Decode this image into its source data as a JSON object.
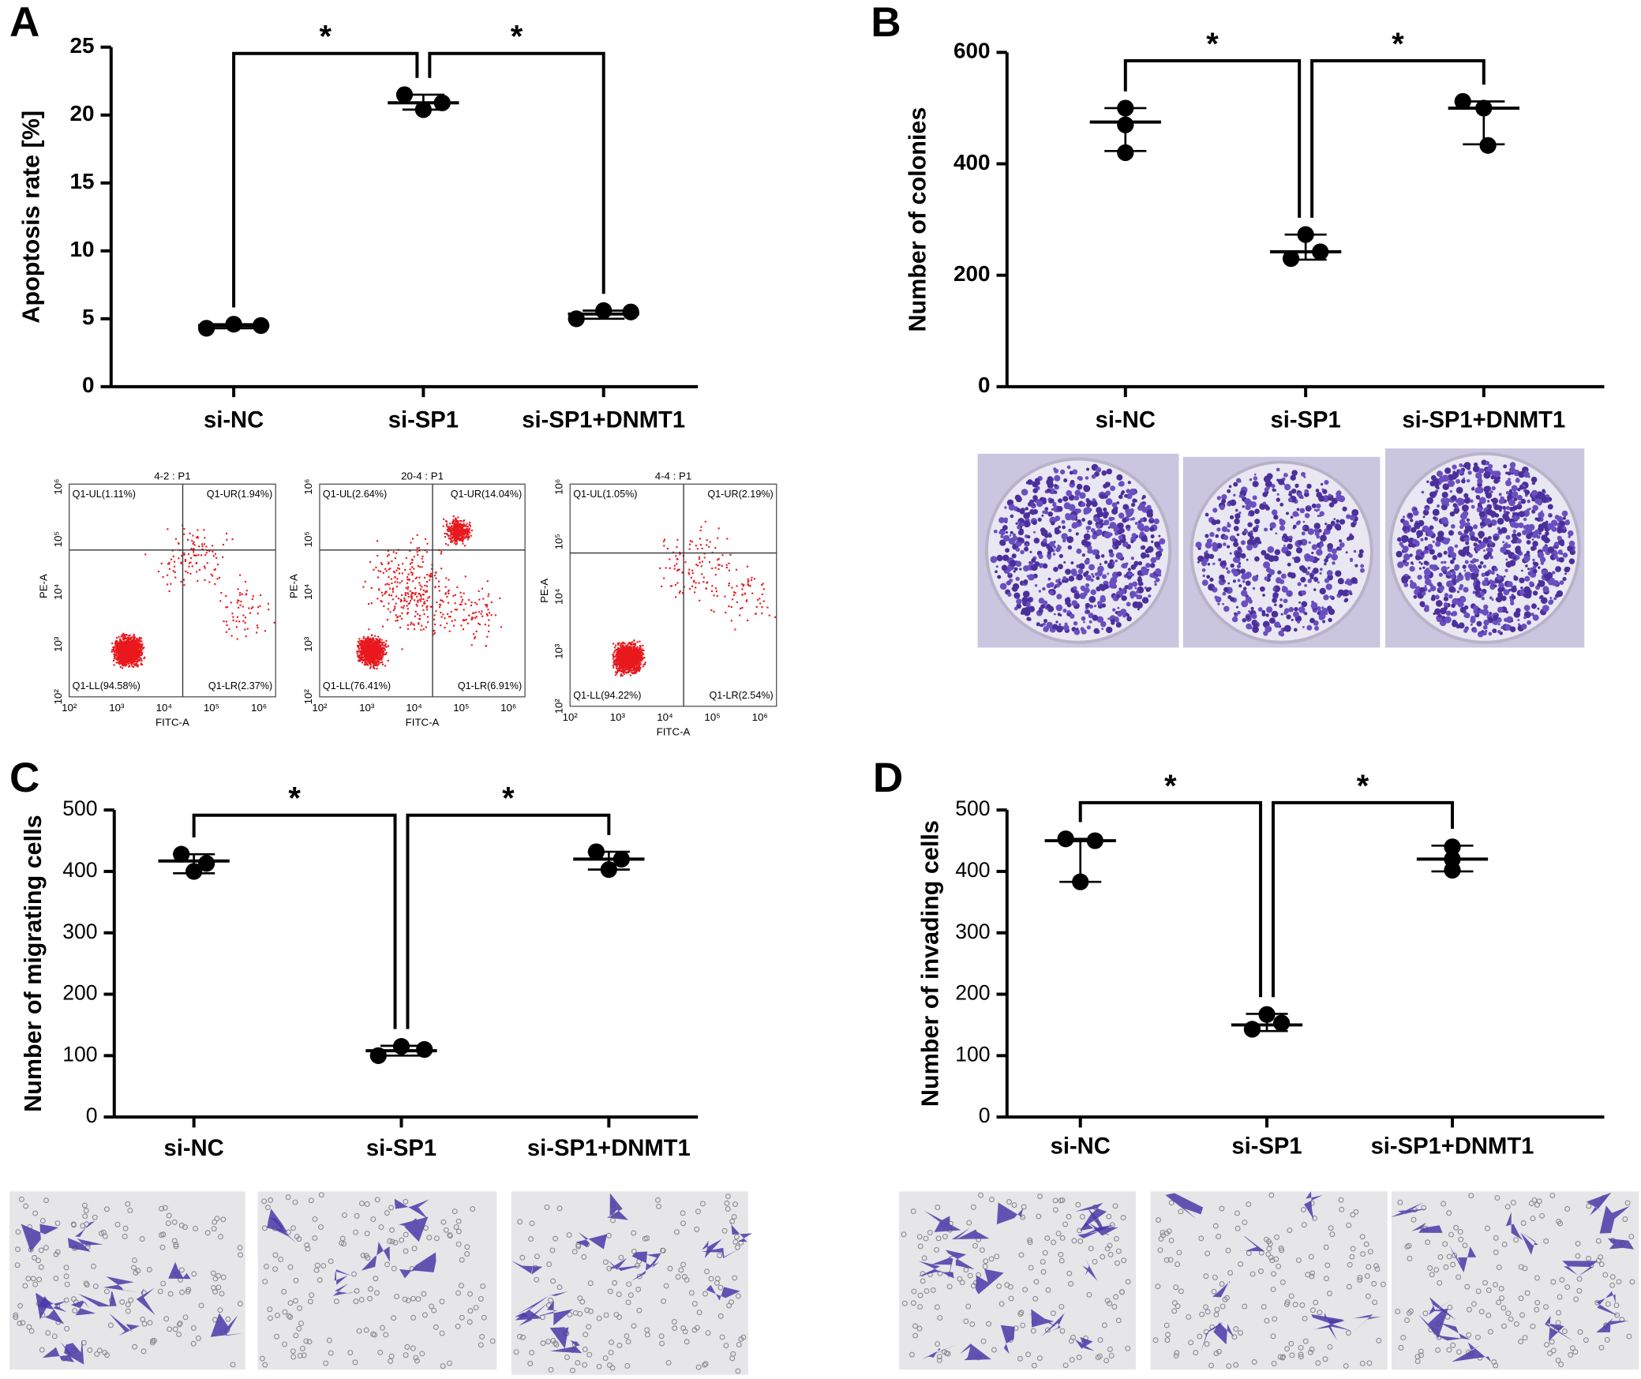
{
  "chart_data": [
    {
      "type": "dot",
      "panel": "A",
      "ylabel": "Apoptosis rate [%]",
      "categories": [
        "si-NC",
        "si-SP1",
        "si-SP1+DNMT1"
      ],
      "points": [
        [
          4.3,
          4.6,
          4.5
        ],
        [
          21.5,
          20.4,
          20.9
        ],
        [
          5.0,
          5.6,
          5.5
        ]
      ],
      "center": [
        4.5,
        20.9,
        5.35
      ],
      "error_low": [
        4.3,
        20.4,
        5.0
      ],
      "error_high": [
        4.6,
        21.5,
        5.6
      ],
      "ylim": [
        0,
        25
      ],
      "yticks": [
        0,
        5,
        10,
        15,
        20,
        25
      ],
      "color": "#000000",
      "significance": [
        "*",
        "*"
      ]
    },
    {
      "type": "dot",
      "panel": "B",
      "ylabel": "Number of colonies",
      "categories": [
        "si-NC",
        "si-SP1",
        "si-SP1+DNMT1"
      ],
      "points": [
        [
          500,
          470,
          420
        ],
        [
          273,
          230,
          242
        ],
        [
          512,
          500,
          433
        ]
      ],
      "center": [
        475,
        242,
        500
      ],
      "error_low": [
        423,
        228,
        435
      ],
      "error_high": [
        500,
        273,
        512
      ],
      "ylim": [
        0,
        600
      ],
      "yticks": [
        0,
        200,
        400,
        600
      ],
      "color": "#000000",
      "significance": [
        "*",
        "*"
      ]
    },
    {
      "type": "dot",
      "panel": "C",
      "ylabel": "Number of migrating cells",
      "categories": [
        "si-NC",
        "si-SP1",
        "si-SP1+DNMT1"
      ],
      "points": [
        [
          428,
          413,
          400
        ],
        [
          100,
          115,
          110
        ],
        [
          432,
          420,
          403
        ]
      ],
      "center": [
        417,
        108,
        420
      ],
      "error_low": [
        397,
        100,
        403
      ],
      "error_high": [
        428,
        116,
        432
      ],
      "ylim": [
        0,
        500
      ],
      "yticks": [
        0,
        100,
        200,
        300,
        400,
        500
      ],
      "color": "#000000",
      "significance": [
        "*",
        "*"
      ]
    },
    {
      "type": "dot",
      "panel": "D",
      "ylabel": "Number of invading cells",
      "categories": [
        "si-NC",
        "si-SP1",
        "si-SP1+DNMT1"
      ],
      "points": [
        [
          453,
          450,
          383
        ],
        [
          167,
          143,
          153
        ],
        [
          440,
          420,
          402
        ]
      ],
      "center": [
        450,
        150,
        420
      ],
      "error_low": [
        383,
        140,
        400
      ],
      "error_high": [
        453,
        168,
        442
      ],
      "ylim": [
        0,
        500
      ],
      "yticks": [
        0,
        100,
        200,
        300,
        400,
        500
      ],
      "color": "#000000",
      "significance": [
        "*",
        "*"
      ]
    }
  ],
  "flow_cytometry": {
    "x_label": "FITC-A",
    "y_label": "PE-A",
    "ticks": [
      "10²",
      "10³",
      "10⁴",
      "10⁵",
      "10⁶"
    ],
    "plots": [
      {
        "title": "4-2 : P1",
        "UL": "Q1-UL(1.11%)",
        "UR": "Q1-UR(1.94%)",
        "LL": "Q1-LL(94.58%)",
        "LR": "Q1-LR(2.37%)"
      },
      {
        "title": "20-4 : P1",
        "UL": "Q1-UL(2.64%)",
        "UR": "Q1-UR(14.04%)",
        "LL": "Q1-LL(76.41%)",
        "LR": "Q1-LR(6.91%)"
      },
      {
        "title": "4-4 : P1",
        "UL": "Q1-UL(1.05%)",
        "UR": "Q1-UR(2.19%)",
        "LL": "Q1-LL(94.22%)",
        "LR": "Q1-LR(2.54%)"
      }
    ]
  }
}
